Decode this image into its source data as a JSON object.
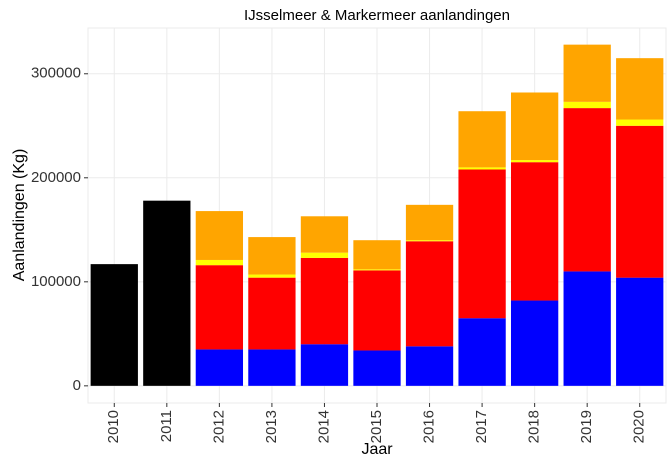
{
  "chart_data": {
    "type": "stacked_bar",
    "title": "IJsselmeer & Markermeer aanlandingen",
    "x_label": "Jaar",
    "y_label": "Aanlandingen (Kg)",
    "categories": [
      "2010",
      "2011",
      "2012",
      "2013",
      "2014",
      "2015",
      "2016",
      "2017",
      "2018",
      "2019",
      "2020"
    ],
    "series": [
      {
        "color": "#000000",
        "values": [
          117000,
          178000,
          null,
          null,
          null,
          null,
          null,
          null,
          null,
          null,
          null
        ]
      },
      {
        "color": "#0000ff",
        "values": [
          null,
          null,
          35000,
          35000,
          40000,
          34000,
          38000,
          65000,
          82000,
          110000,
          104000
        ]
      },
      {
        "color": "#ff0000",
        "values": [
          null,
          null,
          81000,
          69000,
          83000,
          77000,
          101000,
          143000,
          133000,
          157000,
          146000
        ]
      },
      {
        "color": "#ffff00",
        "values": [
          null,
          null,
          5000,
          3000,
          5000,
          1000,
          1000,
          2000,
          2000,
          6000,
          6000
        ]
      },
      {
        "color": "#ffa500",
        "values": [
          null,
          null,
          47000,
          36000,
          35000,
          28000,
          34000,
          54000,
          65000,
          55000,
          59000
        ]
      }
    ],
    "ylim": [
      -16500,
      344000
    ],
    "yticks": [
      0,
      100000,
      200000,
      300000
    ],
    "grid": true
  }
}
